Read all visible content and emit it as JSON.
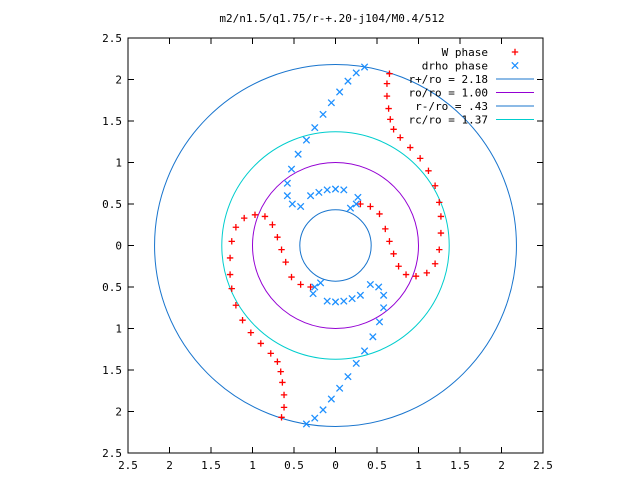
{
  "chart_data": {
    "type": "scatter",
    "title": "m2/n1.5/q1.75/r-+.20-j104/M0.4/512",
    "xlim": [
      -2.5,
      2.5
    ],
    "ylim": [
      -2.5,
      2.5
    ],
    "x_ticks": [
      -2.5,
      -2,
      -1.5,
      -1,
      -0.5,
      0,
      0.5,
      1,
      1.5,
      2,
      2.5
    ],
    "y_ticks": [
      -2.5,
      -2,
      -1.5,
      -1,
      -0.5,
      0,
      0.5,
      1,
      1.5,
      2,
      2.5
    ],
    "x_tick_labels": [
      "2.5",
      "2",
      "1.5",
      "1",
      "0.5",
      "0",
      "0.5",
      "1",
      "1.5",
      "2",
      "2.5"
    ],
    "y_tick_labels": [
      "2.5",
      "2",
      "1.5",
      "1",
      "0.5",
      "0",
      "0.5",
      "1",
      "1.5",
      "2",
      "2.5"
    ],
    "grid": false,
    "legend_position": "top-right",
    "series": [
      {
        "name": "W phase",
        "marker": "+",
        "color": "#ff0000",
        "points": [
          [
            0.65,
            2.07
          ],
          [
            0.62,
            1.95
          ],
          [
            0.62,
            1.8
          ],
          [
            0.64,
            1.65
          ],
          [
            0.66,
            1.52
          ],
          [
            0.7,
            1.4
          ],
          [
            0.78,
            1.3
          ],
          [
            0.9,
            1.18
          ],
          [
            1.02,
            1.05
          ],
          [
            1.12,
            0.9
          ],
          [
            1.2,
            0.72
          ],
          [
            1.25,
            0.52
          ],
          [
            1.27,
            0.35
          ],
          [
            1.27,
            0.15
          ],
          [
            1.25,
            -0.05
          ],
          [
            1.2,
            -0.22
          ],
          [
            1.1,
            -0.33
          ],
          [
            0.97,
            -0.37
          ],
          [
            0.85,
            -0.35
          ],
          [
            0.76,
            -0.25
          ],
          [
            0.7,
            -0.1
          ],
          [
            0.65,
            0.05
          ],
          [
            0.6,
            0.2
          ],
          [
            0.53,
            0.38
          ],
          [
            0.42,
            0.47
          ],
          [
            0.3,
            0.5
          ],
          [
            -0.65,
            -2.07
          ],
          [
            -0.62,
            -1.95
          ],
          [
            -0.62,
            -1.8
          ],
          [
            -0.64,
            -1.65
          ],
          [
            -0.66,
            -1.52
          ],
          [
            -0.7,
            -1.4
          ],
          [
            -0.78,
            -1.3
          ],
          [
            -0.9,
            -1.18
          ],
          [
            -1.02,
            -1.05
          ],
          [
            -1.12,
            -0.9
          ],
          [
            -1.2,
            -0.72
          ],
          [
            -1.25,
            -0.52
          ],
          [
            -1.27,
            -0.35
          ],
          [
            -1.27,
            -0.15
          ],
          [
            -1.25,
            0.05
          ],
          [
            -1.2,
            0.22
          ],
          [
            -1.1,
            0.33
          ],
          [
            -0.97,
            0.37
          ],
          [
            -0.85,
            0.35
          ],
          [
            -0.76,
            0.25
          ],
          [
            -0.7,
            0.1
          ],
          [
            -0.65,
            -0.05
          ],
          [
            -0.6,
            -0.2
          ],
          [
            -0.53,
            -0.38
          ],
          [
            -0.42,
            -0.47
          ],
          [
            -0.3,
            -0.5
          ]
        ]
      },
      {
        "name": "drho phase",
        "marker": "x",
        "color": "#1e90ff",
        "points": [
          [
            0.35,
            2.15
          ],
          [
            0.25,
            2.08
          ],
          [
            0.15,
            1.98
          ],
          [
            0.05,
            1.85
          ],
          [
            -0.05,
            1.72
          ],
          [
            -0.15,
            1.58
          ],
          [
            -0.25,
            1.42
          ],
          [
            -0.35,
            1.27
          ],
          [
            -0.45,
            1.1
          ],
          [
            -0.53,
            0.92
          ],
          [
            -0.58,
            0.75
          ],
          [
            -0.58,
            0.6
          ],
          [
            -0.52,
            0.5
          ],
          [
            -0.42,
            0.47
          ],
          [
            0.27,
            0.58
          ],
          [
            0.25,
            0.5
          ],
          [
            0.18,
            0.45
          ],
          [
            0.1,
            0.67
          ],
          [
            0.0,
            0.68
          ],
          [
            -0.1,
            0.67
          ],
          [
            -0.2,
            0.64
          ],
          [
            -0.3,
            0.6
          ],
          [
            -0.35,
            -2.15
          ],
          [
            -0.25,
            -2.08
          ],
          [
            -0.15,
            -1.98
          ],
          [
            -0.05,
            -1.85
          ],
          [
            0.05,
            -1.72
          ],
          [
            0.15,
            -1.58
          ],
          [
            0.25,
            -1.42
          ],
          [
            0.35,
            -1.27
          ],
          [
            0.45,
            -1.1
          ],
          [
            0.53,
            -0.92
          ],
          [
            0.58,
            -0.75
          ],
          [
            0.58,
            -0.6
          ],
          [
            0.52,
            -0.5
          ],
          [
            0.42,
            -0.47
          ],
          [
            -0.27,
            -0.58
          ],
          [
            -0.25,
            -0.5
          ],
          [
            -0.18,
            -0.45
          ],
          [
            -0.1,
            -0.67
          ],
          [
            0.0,
            -0.68
          ],
          [
            0.1,
            -0.67
          ],
          [
            0.2,
            -0.64
          ],
          [
            0.3,
            -0.6
          ]
        ]
      },
      {
        "name": "r+/ro = 2.18",
        "type": "circle",
        "radius": 2.18,
        "color": "#1874cd"
      },
      {
        "name": "ro/ro = 1.00",
        "type": "circle",
        "radius": 1.0,
        "color": "#9400d3"
      },
      {
        "name": "r-/ro = .43",
        "type": "circle",
        "radius": 0.43,
        "color": "#1874cd"
      },
      {
        "name": "rc/ro = 1.37",
        "type": "circle",
        "radius": 1.37,
        "color": "#00cdcd"
      }
    ]
  }
}
